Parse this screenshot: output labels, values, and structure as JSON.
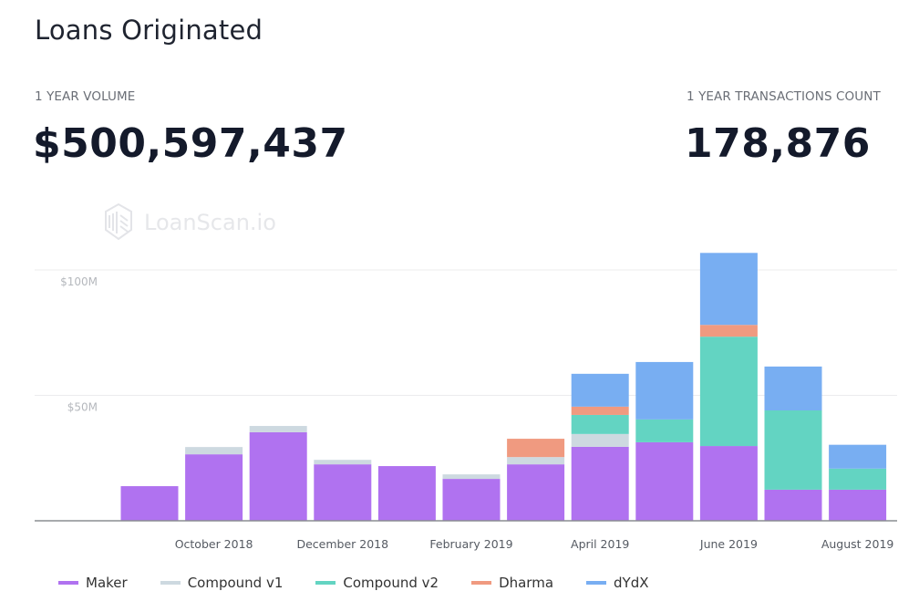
{
  "header": {
    "title": "Loans Originated",
    "volume_label": "1 YEAR VOLUME",
    "volume_value": "$500,597,437",
    "transactions_label": "1 YEAR TRANSACTIONS COUNT",
    "transactions_value": "178,876"
  },
  "watermark": "LoanScan.io",
  "chart_data": {
    "type": "bar",
    "stacked": true,
    "title": "Loans Originated",
    "xlabel": "",
    "ylabel": "",
    "ylim": [
      0,
      100
    ],
    "y_unit": "$M",
    "y_ticks": [
      {
        "value": 50,
        "label": "$50M"
      },
      {
        "value": 100,
        "label": "$100M"
      }
    ],
    "grid": true,
    "categories": [
      "September 2018",
      "October 2018",
      "November 2018",
      "December 2018",
      "January 2019",
      "February 2019",
      "March 2019",
      "April 2019",
      "May 2019",
      "June 2019",
      "July 2019",
      "August 2019"
    ],
    "x_tick_labels": [
      {
        "index": 1,
        "label": "October 2018"
      },
      {
        "index": 3,
        "label": "December 2018"
      },
      {
        "index": 5,
        "label": "February 2019"
      },
      {
        "index": 7,
        "label": "April 2019"
      },
      {
        "index": 9,
        "label": "June 2019"
      },
      {
        "index": 11,
        "label": "August 2019"
      }
    ],
    "legend_position": "bottom",
    "series": [
      {
        "name": "Maker",
        "color": "#b072f0",
        "values": [
          13.8,
          26.5,
          35.3,
          22.5,
          21.8,
          16.7,
          22.5,
          29.5,
          31.3,
          29.8,
          12.4,
          12.4
        ]
      },
      {
        "name": "Compound v1",
        "color": "#cdd9e0",
        "values": [
          0,
          2.9,
          2.5,
          1.8,
          0,
          1.8,
          2.9,
          5.1,
          0,
          0,
          0,
          0
        ]
      },
      {
        "name": "Compound v2",
        "color": "#63d4c2",
        "values": [
          0,
          0,
          0,
          0,
          0,
          0,
          0,
          7.6,
          9.1,
          43.6,
          31.6,
          8.4
        ]
      },
      {
        "name": "Dharma",
        "color": "#f09a80",
        "values": [
          0,
          0,
          0,
          0,
          0,
          0,
          7.3,
          3.3,
          0,
          4.7,
          0,
          0
        ]
      },
      {
        "name": "dYdX",
        "color": "#78aef2",
        "values": [
          0,
          0,
          0,
          0,
          0,
          0,
          0,
          13.1,
          22.9,
          28.7,
          17.5,
          9.5
        ]
      }
    ]
  }
}
